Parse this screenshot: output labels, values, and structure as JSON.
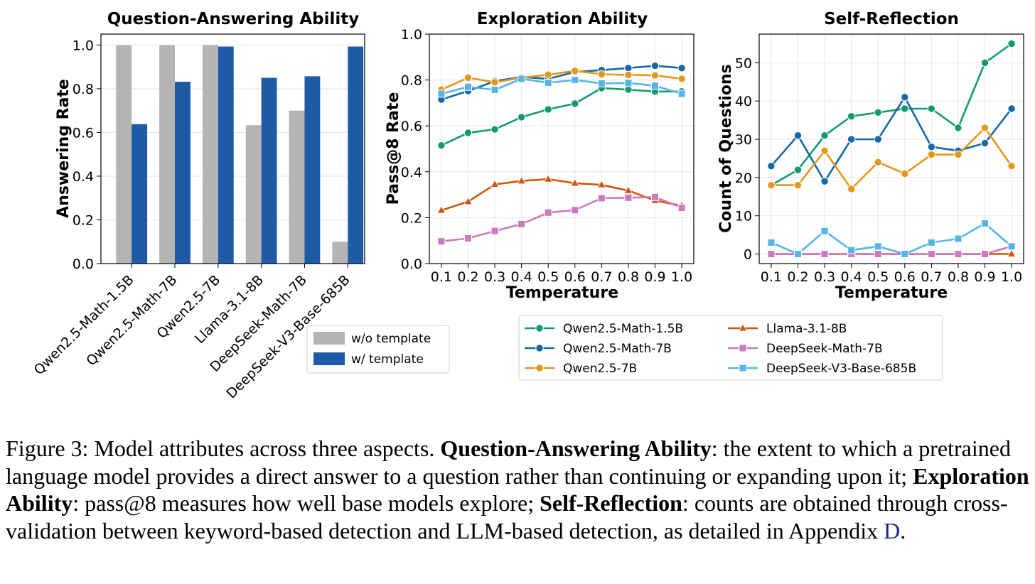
{
  "chart_data": [
    {
      "type": "bar",
      "title": "Question-Answering Ability",
      "xlabel": "",
      "ylabel": "Answering Rate",
      "ylim": [
        0,
        1.05
      ],
      "yticks": [
        "0.0",
        "0.2",
        "0.4",
        "0.6",
        "0.8",
        "1.0"
      ],
      "grid": true,
      "legend_position": "lower-right-outside",
      "categories": [
        "Qwen2.5-Math-1.5B",
        "Qwen2.5-Math-7B",
        "Qwen2.5-7B",
        "Llama-3.1-8B",
        "DeepSeek-Math-7B",
        "DeepSeek-V3-Base-685B"
      ],
      "series": [
        {
          "name": "w/o template",
          "color": "#b4b4b4",
          "values": [
            1.0,
            1.0,
            1.0,
            0.633,
            0.7,
            0.1
          ]
        },
        {
          "name": "w/ template",
          "color": "#1f5aa6",
          "values": [
            0.638,
            0.832,
            0.993,
            0.85,
            0.857,
            0.993
          ]
        }
      ]
    },
    {
      "type": "line",
      "title": "Exploration Ability",
      "xlabel": "Temperature",
      "ylabel": "Pass@8 Rate",
      "ylim": [
        0,
        1.0
      ],
      "yticks": [
        "0.0",
        "0.2",
        "0.4",
        "0.6",
        "0.8",
        "1.0"
      ],
      "grid": true,
      "x": [
        0.1,
        0.2,
        0.3,
        0.4,
        0.5,
        0.6,
        0.7,
        0.8,
        0.9,
        1.0
      ],
      "xticks": [
        "0.1",
        "0.2",
        "0.3",
        "0.4",
        "0.5",
        "0.6",
        "0.7",
        "0.8",
        "0.9",
        "1.0"
      ],
      "series": [
        {
          "name": "Qwen2.5-Math-1.5B",
          "color": "#129a6e",
          "marker": "circle",
          "values": [
            0.515,
            0.57,
            0.585,
            0.638,
            0.672,
            0.697,
            0.765,
            0.758,
            0.75,
            0.75
          ]
        },
        {
          "name": "Qwen2.5-Math-7B",
          "color": "#1369a6",
          "marker": "circle",
          "values": [
            0.715,
            0.752,
            0.795,
            0.813,
            0.805,
            0.835,
            0.843,
            0.852,
            0.862,
            0.852
          ]
        },
        {
          "name": "Qwen2.5-7B",
          "color": "#e3971c",
          "marker": "circle",
          "values": [
            0.758,
            0.81,
            0.79,
            0.81,
            0.823,
            0.84,
            0.825,
            0.822,
            0.82,
            0.805
          ]
        },
        {
          "name": "Llama-3.1-8B",
          "color": "#d0560f",
          "marker": "triangle",
          "values": [
            0.232,
            0.27,
            0.345,
            0.36,
            0.368,
            0.35,
            0.343,
            0.318,
            0.275,
            0.252
          ]
        },
        {
          "name": "DeepSeek-Math-7B",
          "color": "#cc79c0",
          "marker": "square",
          "values": [
            0.097,
            0.11,
            0.142,
            0.172,
            0.222,
            0.233,
            0.285,
            0.287,
            0.29,
            0.243
          ]
        },
        {
          "name": "DeepSeek-V3-Base-685B",
          "color": "#56b4e9",
          "marker": "square",
          "values": [
            0.74,
            0.77,
            0.757,
            0.805,
            0.788,
            0.8,
            0.785,
            0.787,
            0.775,
            0.74
          ]
        }
      ]
    },
    {
      "type": "line",
      "title": "Self-Reflection",
      "xlabel": "Temperature",
      "ylabel": "Count of Questions",
      "ylim": [
        -2.5,
        57.5
      ],
      "yticks": [
        "0",
        "10",
        "20",
        "30",
        "40",
        "50"
      ],
      "grid": true,
      "x": [
        0.1,
        0.2,
        0.3,
        0.4,
        0.5,
        0.6,
        0.7,
        0.8,
        0.9,
        1.0
      ],
      "xticks": [
        "0.1",
        "0.2",
        "0.3",
        "0.4",
        "0.5",
        "0.6",
        "0.7",
        "0.8",
        "0.9",
        "1.0"
      ],
      "series": [
        {
          "name": "Qwen2.5-Math-1.5B",
          "color": "#129a6e",
          "marker": "circle",
          "values": [
            18,
            22,
            31,
            36,
            37,
            38,
            38,
            33,
            50,
            55
          ]
        },
        {
          "name": "Qwen2.5-Math-7B",
          "color": "#1369a6",
          "marker": "circle",
          "values": [
            23,
            31,
            19,
            30,
            30,
            41,
            28,
            27,
            29,
            38
          ]
        },
        {
          "name": "Qwen2.5-7B",
          "color": "#e3971c",
          "marker": "circle",
          "values": [
            18,
            18,
            27,
            17,
            24,
            21,
            26,
            26,
            33,
            23
          ]
        },
        {
          "name": "Llama-3.1-8B",
          "color": "#d0560f",
          "marker": "triangle",
          "values": [
            0,
            0,
            0,
            0,
            0,
            0,
            0,
            0,
            0,
            0
          ]
        },
        {
          "name": "DeepSeek-Math-7B",
          "color": "#cc79c0",
          "marker": "square",
          "values": [
            0,
            0,
            0,
            0,
            0,
            0,
            0,
            0,
            0,
            2
          ]
        },
        {
          "name": "DeepSeek-V3-Base-685B",
          "color": "#56b4e9",
          "marker": "square",
          "values": [
            3,
            0,
            6,
            1,
            2,
            0,
            3,
            4,
            8,
            2
          ]
        }
      ]
    }
  ],
  "legend_line_entries": [
    "Qwen2.5-Math-1.5B",
    "Qwen2.5-Math-7B",
    "Qwen2.5-7B",
    "Llama-3.1-8B",
    "DeepSeek-Math-7B",
    "DeepSeek-V3-Base-685B"
  ],
  "caption": {
    "label": "Figure 3:",
    "intro": "Model attributes across three aspects.",
    "term1": "Question-Answering Ability",
    "text1": ": the extent to which a pretrained language model provides a direct answer to a question rather than continuing or expanding upon it;",
    "term2": "Exploration Ability",
    "text2": ": pass@8 measures how well base models explore;",
    "term3": "Self-Reflection",
    "text3": ": counts are obtained through cross-validation between keyword-based detection and LLM-based detection, as detailed in Appendix",
    "appendix_ref": "D",
    "end": "."
  }
}
